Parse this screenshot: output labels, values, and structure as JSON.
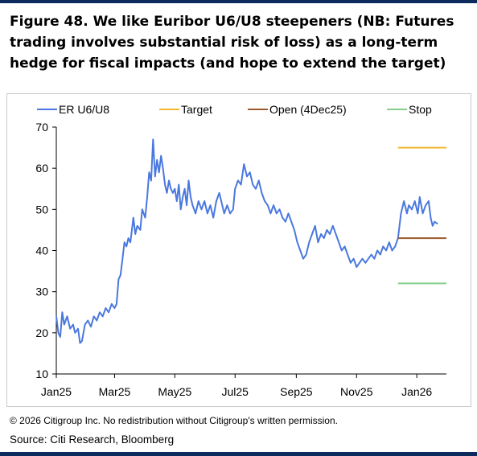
{
  "title": "Figure 48. We like Euribor U6/U8 steepeners (NB: Futures trading involves substantial risk of loss) as a long-term hedge for fiscal impacts (and hope to extend the target)",
  "footnote": "© 2026 Citigroup Inc. No redistribution without Citigroup's written permission.",
  "source": "Source: Citi Research, Bloomberg",
  "colors": {
    "brand_rule": "#0d2a5c"
  },
  "chart_data": {
    "type": "line",
    "title": "",
    "xlabel": "",
    "ylabel": "",
    "ylim": [
      10,
      70
    ],
    "yticks": [
      10,
      20,
      30,
      40,
      50,
      60,
      70
    ],
    "xlim": [
      "2025-01-01",
      "2026-01-31"
    ],
    "xticks": [
      {
        "date": "2025-01-01",
        "label": "Jan25"
      },
      {
        "date": "2025-03-01",
        "label": "Mar25"
      },
      {
        "date": "2025-05-01",
        "label": "May25"
      },
      {
        "date": "2025-07-01",
        "label": "Jul25"
      },
      {
        "date": "2025-09-01",
        "label": "Sep25"
      },
      {
        "date": "2025-11-01",
        "label": "Nov25"
      },
      {
        "date": "2026-01-01",
        "label": "Jan26"
      }
    ],
    "grid": false,
    "legend_position": "top",
    "series": [
      {
        "name": "ER U6/U8",
        "color": "#4a78de",
        "kind": "line",
        "points": [
          [
            "2025-01-01",
            24
          ],
          [
            "2025-01-03",
            20
          ],
          [
            "2025-01-05",
            19
          ],
          [
            "2025-01-07",
            25
          ],
          [
            "2025-01-09",
            22
          ],
          [
            "2025-01-12",
            24
          ],
          [
            "2025-01-15",
            21
          ],
          [
            "2025-01-18",
            22
          ],
          [
            "2025-01-20",
            20
          ],
          [
            "2025-01-23",
            21
          ],
          [
            "2025-01-25",
            17.5
          ],
          [
            "2025-01-27",
            18
          ],
          [
            "2025-01-30",
            22
          ],
          [
            "2025-02-02",
            23
          ],
          [
            "2025-02-05",
            21.5
          ],
          [
            "2025-02-08",
            24
          ],
          [
            "2025-02-11",
            23
          ],
          [
            "2025-02-14",
            25
          ],
          [
            "2025-02-17",
            24
          ],
          [
            "2025-02-20",
            26
          ],
          [
            "2025-02-23",
            25
          ],
          [
            "2025-02-26",
            27
          ],
          [
            "2025-03-01",
            26
          ],
          [
            "2025-03-03",
            27
          ],
          [
            "2025-03-05",
            33
          ],
          [
            "2025-03-07",
            34
          ],
          [
            "2025-03-09",
            38
          ],
          [
            "2025-03-11",
            42
          ],
          [
            "2025-03-13",
            41
          ],
          [
            "2025-03-15",
            43
          ],
          [
            "2025-03-17",
            42
          ],
          [
            "2025-03-20",
            48
          ],
          [
            "2025-03-22",
            44
          ],
          [
            "2025-03-24",
            46
          ],
          [
            "2025-03-27",
            45
          ],
          [
            "2025-03-29",
            50
          ],
          [
            "2025-04-01",
            48
          ],
          [
            "2025-04-03",
            53
          ],
          [
            "2025-04-05",
            59
          ],
          [
            "2025-04-07",
            57
          ],
          [
            "2025-04-09",
            67
          ],
          [
            "2025-04-11",
            58
          ],
          [
            "2025-04-13",
            62
          ],
          [
            "2025-04-15",
            59
          ],
          [
            "2025-04-17",
            63
          ],
          [
            "2025-04-19",
            60
          ],
          [
            "2025-04-21",
            56
          ],
          [
            "2025-04-23",
            54
          ],
          [
            "2025-04-25",
            57
          ],
          [
            "2025-04-27",
            55
          ],
          [
            "2025-04-29",
            54
          ],
          [
            "2025-05-01",
            55
          ],
          [
            "2025-05-03",
            52
          ],
          [
            "2025-05-05",
            56
          ],
          [
            "2025-05-07",
            50
          ],
          [
            "2025-05-09",
            53
          ],
          [
            "2025-05-11",
            55
          ],
          [
            "2025-05-13",
            51
          ],
          [
            "2025-05-15",
            57
          ],
          [
            "2025-05-17",
            53
          ],
          [
            "2025-05-19",
            51
          ],
          [
            "2025-05-22",
            49
          ],
          [
            "2025-05-25",
            52
          ],
          [
            "2025-05-28",
            50
          ],
          [
            "2025-05-31",
            52
          ],
          [
            "2025-06-03",
            49
          ],
          [
            "2025-06-06",
            51
          ],
          [
            "2025-06-09",
            48
          ],
          [
            "2025-06-12",
            52
          ],
          [
            "2025-06-15",
            54
          ],
          [
            "2025-06-17",
            52
          ],
          [
            "2025-06-20",
            49
          ],
          [
            "2025-06-23",
            51
          ],
          [
            "2025-06-26",
            49
          ],
          [
            "2025-06-29",
            50
          ],
          [
            "2025-07-01",
            55
          ],
          [
            "2025-07-04",
            57
          ],
          [
            "2025-07-07",
            56
          ],
          [
            "2025-07-10",
            61
          ],
          [
            "2025-07-13",
            58
          ],
          [
            "2025-07-16",
            59
          ],
          [
            "2025-07-19",
            56
          ],
          [
            "2025-07-22",
            55
          ],
          [
            "2025-07-25",
            57
          ],
          [
            "2025-07-28",
            54
          ],
          [
            "2025-07-31",
            52
          ],
          [
            "2025-08-03",
            51
          ],
          [
            "2025-08-06",
            49
          ],
          [
            "2025-08-09",
            51
          ],
          [
            "2025-08-12",
            49
          ],
          [
            "2025-08-15",
            50
          ],
          [
            "2025-08-18",
            48
          ],
          [
            "2025-08-21",
            47
          ],
          [
            "2025-08-24",
            49
          ],
          [
            "2025-08-27",
            47
          ],
          [
            "2025-08-30",
            45
          ],
          [
            "2025-09-02",
            42
          ],
          [
            "2025-09-05",
            40
          ],
          [
            "2025-09-08",
            38
          ],
          [
            "2025-09-11",
            39
          ],
          [
            "2025-09-14",
            42
          ],
          [
            "2025-09-17",
            44
          ],
          [
            "2025-09-20",
            46
          ],
          [
            "2025-09-23",
            42
          ],
          [
            "2025-09-26",
            44
          ],
          [
            "2025-09-29",
            43
          ],
          [
            "2025-10-02",
            45
          ],
          [
            "2025-10-05",
            44
          ],
          [
            "2025-10-08",
            46
          ],
          [
            "2025-10-11",
            44
          ],
          [
            "2025-10-14",
            42
          ],
          [
            "2025-10-17",
            40
          ],
          [
            "2025-10-20",
            41
          ],
          [
            "2025-10-23",
            39
          ],
          [
            "2025-10-26",
            37
          ],
          [
            "2025-10-29",
            38
          ],
          [
            "2025-11-01",
            36
          ],
          [
            "2025-11-04",
            37
          ],
          [
            "2025-11-07",
            38
          ],
          [
            "2025-11-10",
            37
          ],
          [
            "2025-11-13",
            38
          ],
          [
            "2025-11-16",
            39
          ],
          [
            "2025-11-19",
            38
          ],
          [
            "2025-11-22",
            40
          ],
          [
            "2025-11-25",
            39
          ],
          [
            "2025-11-28",
            41
          ],
          [
            "2025-12-01",
            40
          ],
          [
            "2025-12-04",
            42
          ],
          [
            "2025-12-07",
            40
          ],
          [
            "2025-12-10",
            41
          ],
          [
            "2025-12-13",
            43
          ],
          [
            "2025-12-16",
            49
          ],
          [
            "2025-12-19",
            52
          ],
          [
            "2025-12-22",
            49
          ],
          [
            "2025-12-24",
            51
          ],
          [
            "2025-12-27",
            50
          ],
          [
            "2025-12-30",
            52
          ],
          [
            "2026-01-02",
            49
          ],
          [
            "2026-01-04",
            53
          ],
          [
            "2026-01-07",
            49
          ],
          [
            "2026-01-10",
            51
          ],
          [
            "2026-01-13",
            52
          ],
          [
            "2026-01-15",
            48
          ],
          [
            "2026-01-17",
            46
          ],
          [
            "2026-01-19",
            47
          ],
          [
            "2026-01-22",
            46.5
          ]
        ]
      },
      {
        "name": "Target",
        "color": "#f5b731",
        "kind": "hline",
        "value": 65,
        "from": "2025-12-13",
        "to": "2026-01-31"
      },
      {
        "name": "Open (4Dec25)",
        "color": "#9c5a2c",
        "kind": "hline",
        "value": 43,
        "from": "2025-12-13",
        "to": "2026-01-31"
      },
      {
        "name": "Stop",
        "color": "#86cf8a",
        "kind": "hline",
        "value": 32,
        "from": "2025-12-13",
        "to": "2026-01-31"
      }
    ]
  }
}
